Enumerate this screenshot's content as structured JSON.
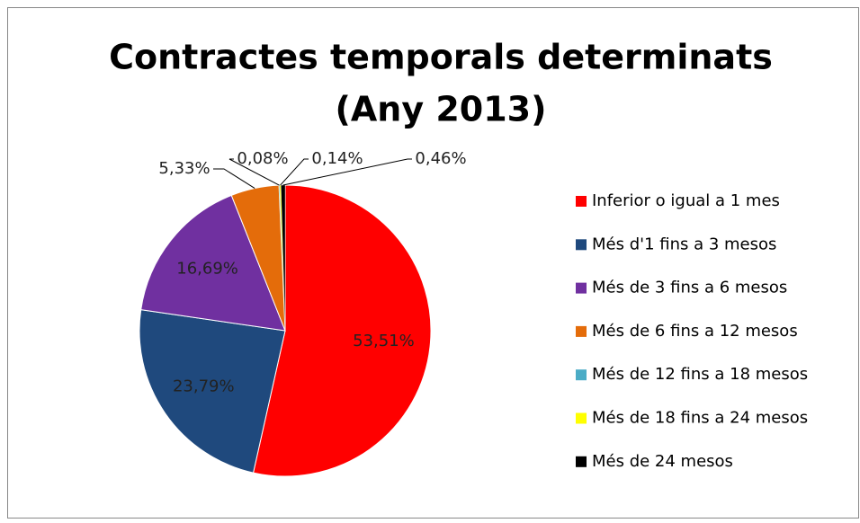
{
  "chart_data": {
    "type": "pie",
    "title": [
      "Contractes temporals determinats",
      "(Any 2013)"
    ],
    "categories": [
      "Inferior o igual a 1 mes",
      "Més d'1 fins a 3 mesos",
      "Més de 3 fins a 6 mesos",
      "Més de 6 fins a 12 mesos",
      "Més de 12 fins a 18 mesos",
      "Més de 18 fins a 24 mesos",
      "Més de 24 mesos"
    ],
    "values": [
      53.51,
      23.79,
      16.69,
      5.33,
      0.08,
      0.14,
      0.46
    ],
    "value_labels": [
      "53,51%",
      "23,79%",
      "16,69%",
      "5,33%",
      "0,08%",
      "0,14%",
      "0,46%"
    ],
    "colors": [
      "#ff0000",
      "#1f497d",
      "#7030a0",
      "#e46c0a",
      "#4bacc6",
      "#ffff00",
      "#000000"
    ],
    "legend": "right"
  }
}
